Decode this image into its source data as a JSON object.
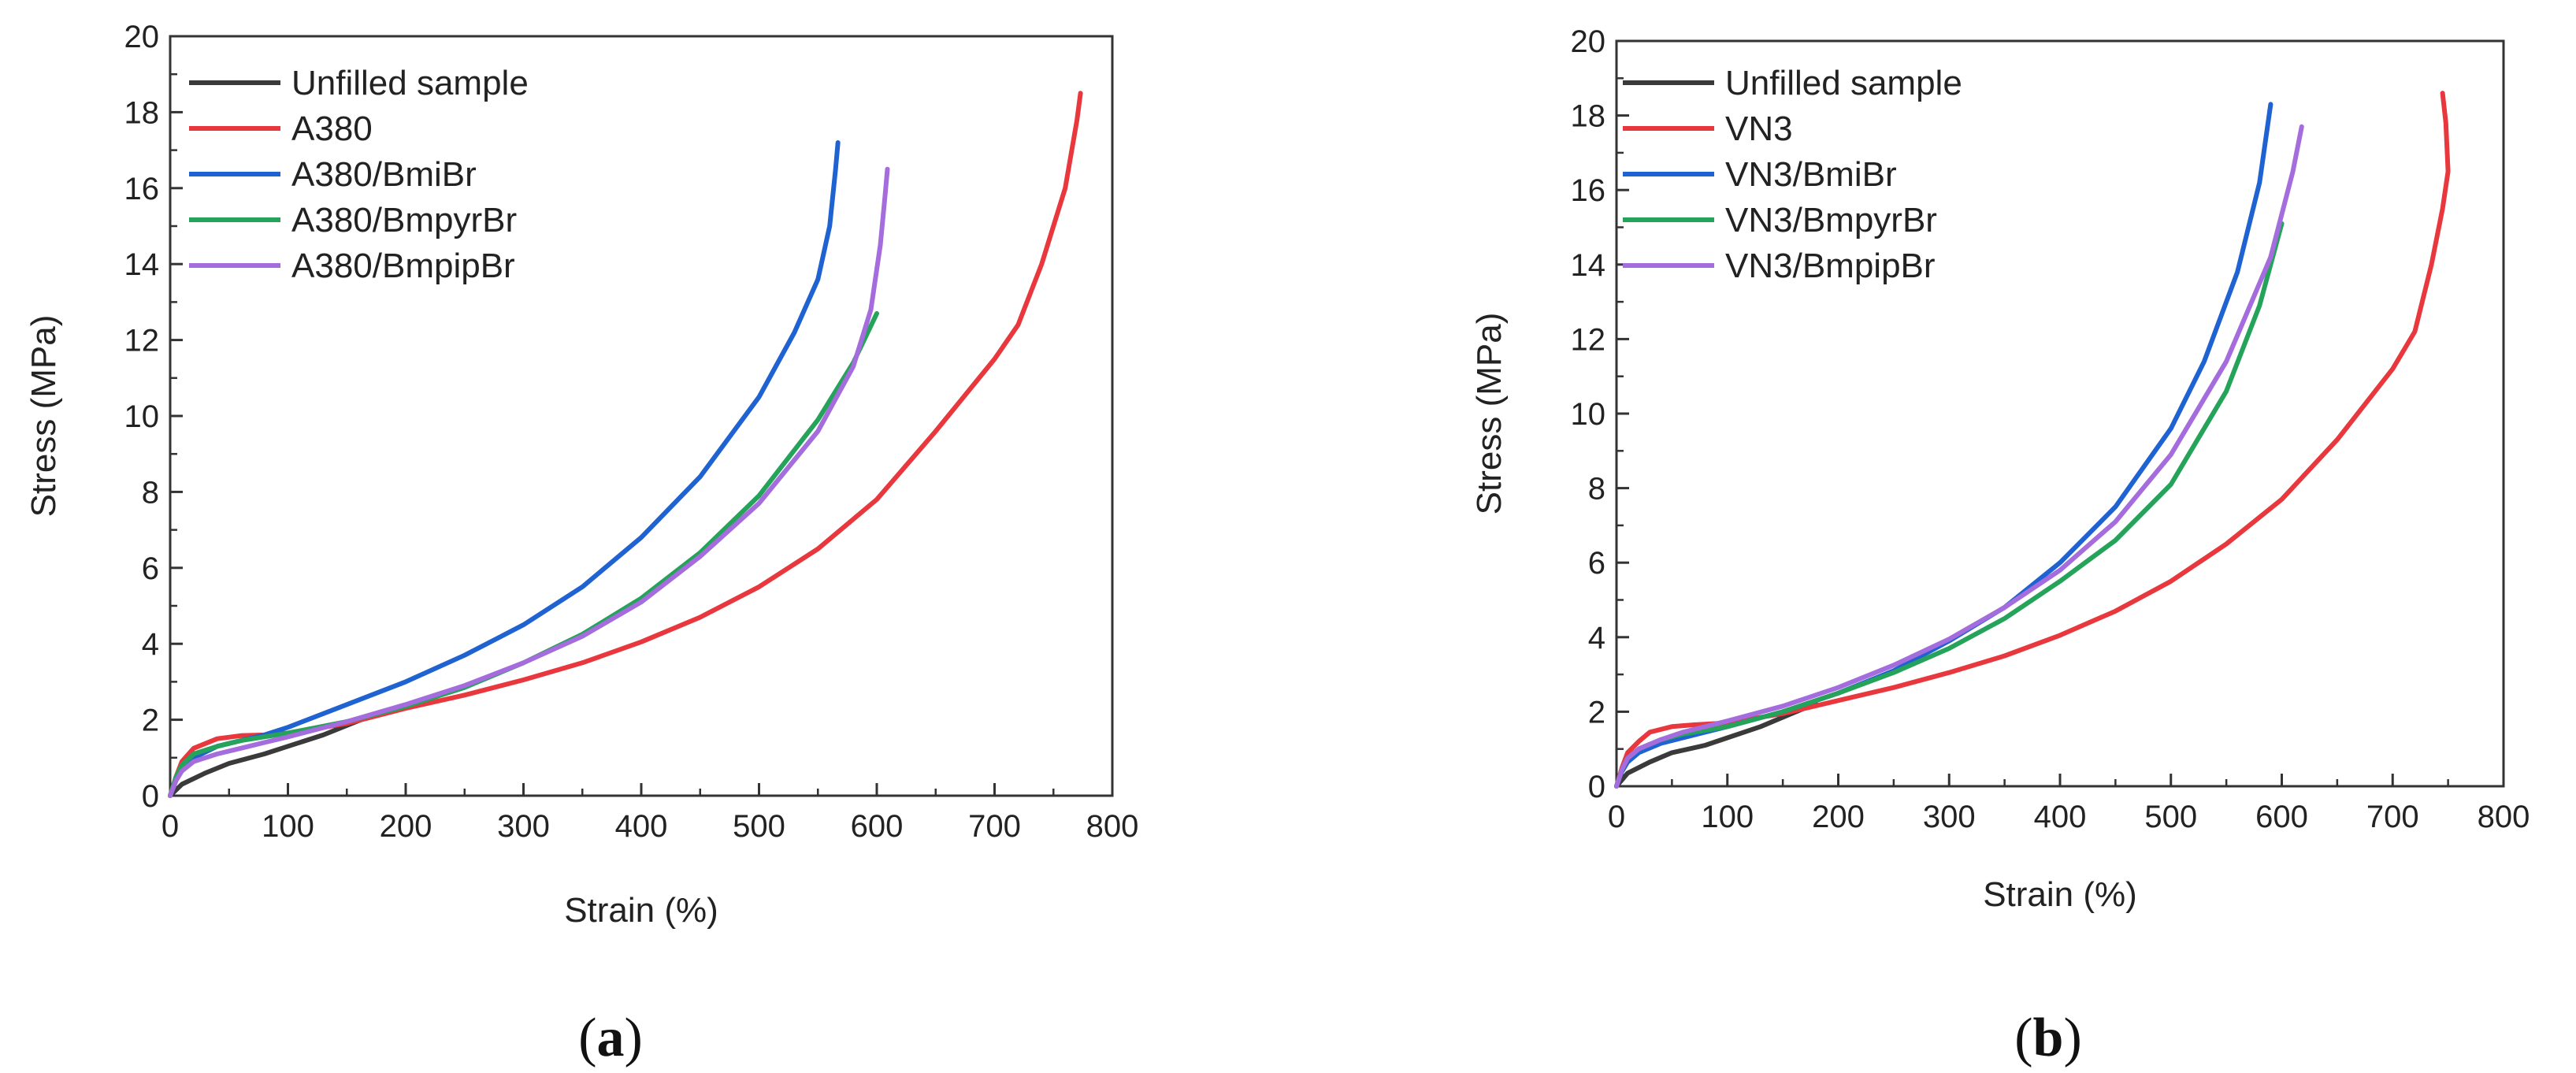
{
  "chart_data": [
    {
      "type": "line",
      "panel_label": "a",
      "xlabel": "Strain (%)",
      "ylabel": "Stress (MPa)",
      "xlim": [
        0,
        800
      ],
      "ylim": [
        0,
        20
      ],
      "xticks": [
        0,
        100,
        200,
        300,
        400,
        500,
        600,
        700,
        800
      ],
      "yticks": [
        0,
        2,
        4,
        6,
        8,
        10,
        12,
        14,
        16,
        18,
        20
      ],
      "legend_position": "top-left",
      "series": [
        {
          "name": "Unfilled sample",
          "color": "#3a3a3a",
          "x": [
            0,
            10,
            30,
            50,
            80,
            100,
            130,
            150,
            170,
            180
          ],
          "y": [
            0,
            0.3,
            0.6,
            0.85,
            1.1,
            1.3,
            1.6,
            1.85,
            2.1,
            2.2
          ]
        },
        {
          "name": "A380",
          "color": "#e8373d",
          "x": [
            0,
            5,
            10,
            20,
            40,
            60,
            80,
            100,
            150,
            200,
            250,
            300,
            350,
            400,
            450,
            500,
            550,
            600,
            650,
            700,
            720,
            740,
            760,
            770,
            773
          ],
          "y": [
            0,
            0.5,
            0.9,
            1.25,
            1.5,
            1.58,
            1.6,
            1.65,
            1.9,
            2.3,
            2.65,
            3.05,
            3.5,
            4.05,
            4.7,
            5.5,
            6.5,
            7.8,
            9.6,
            11.5,
            12.4,
            14.0,
            16.0,
            17.8,
            18.5
          ]
        },
        {
          "name": "A380/BmiBr",
          "color": "#1f62d1",
          "x": [
            0,
            5,
            10,
            20,
            40,
            60,
            80,
            100,
            150,
            200,
            250,
            300,
            350,
            400,
            450,
            500,
            530,
            550,
            560,
            565,
            567
          ],
          "y": [
            0,
            0.4,
            0.7,
            1.0,
            1.3,
            1.45,
            1.6,
            1.8,
            2.4,
            3.0,
            3.7,
            4.5,
            5.5,
            6.8,
            8.4,
            10.5,
            12.2,
            13.6,
            15.0,
            16.5,
            17.2
          ]
        },
        {
          "name": "A380/BmpyrBr",
          "color": "#25a35a",
          "x": [
            0,
            5,
            10,
            20,
            40,
            60,
            80,
            100,
            150,
            200,
            250,
            300,
            350,
            400,
            450,
            500,
            550,
            580,
            600
          ],
          "y": [
            0,
            0.5,
            0.8,
            1.1,
            1.3,
            1.45,
            1.55,
            1.65,
            1.95,
            2.35,
            2.85,
            3.5,
            4.25,
            5.2,
            6.4,
            7.9,
            9.9,
            11.4,
            12.7
          ]
        },
        {
          "name": "A380/BmpipBr",
          "color": "#a46cdc",
          "x": [
            0,
            5,
            10,
            20,
            40,
            60,
            80,
            100,
            150,
            200,
            250,
            300,
            350,
            400,
            450,
            500,
            550,
            580,
            595,
            603,
            607,
            609
          ],
          "y": [
            0,
            0.4,
            0.65,
            0.9,
            1.1,
            1.25,
            1.4,
            1.55,
            1.95,
            2.4,
            2.9,
            3.5,
            4.2,
            5.1,
            6.3,
            7.7,
            9.6,
            11.3,
            12.8,
            14.5,
            15.8,
            16.5
          ]
        }
      ]
    },
    {
      "type": "line",
      "panel_label": "b",
      "xlabel": "Strain (%)",
      "ylabel": "Stress (MPa)",
      "xlim": [
        0,
        800
      ],
      "ylim": [
        0,
        20
      ],
      "xticks": [
        0,
        100,
        200,
        300,
        400,
        500,
        600,
        700,
        800
      ],
      "yticks": [
        0,
        2,
        4,
        6,
        8,
        10,
        12,
        14,
        16,
        18,
        20
      ],
      "legend_position": "top-left",
      "series": [
        {
          "name": "Unfilled sample",
          "color": "#3a3a3a",
          "x": [
            0,
            10,
            30,
            50,
            80,
            100,
            130,
            150,
            170,
            180
          ],
          "y": [
            0,
            0.35,
            0.65,
            0.9,
            1.1,
            1.3,
            1.6,
            1.85,
            2.1,
            2.2
          ]
        },
        {
          "name": "VN3",
          "color": "#e8373d",
          "x": [
            0,
            5,
            10,
            20,
            30,
            50,
            70,
            100,
            150,
            200,
            250,
            300,
            350,
            400,
            450,
            500,
            550,
            600,
            650,
            700,
            720,
            735,
            745,
            750,
            748,
            745
          ],
          "y": [
            0,
            0.5,
            0.9,
            1.2,
            1.45,
            1.6,
            1.65,
            1.7,
            1.95,
            2.3,
            2.65,
            3.05,
            3.5,
            4.05,
            4.7,
            5.5,
            6.5,
            7.7,
            9.3,
            11.2,
            12.2,
            14.0,
            15.5,
            16.5,
            17.8,
            18.6
          ]
        },
        {
          "name": "VN3/BmiBr",
          "color": "#1f62d1",
          "x": [
            0,
            5,
            10,
            20,
            40,
            60,
            80,
            100,
            150,
            200,
            250,
            300,
            350,
            400,
            450,
            500,
            530,
            560,
            580,
            590
          ],
          "y": [
            0,
            0.4,
            0.65,
            0.9,
            1.15,
            1.3,
            1.45,
            1.6,
            2.0,
            2.5,
            3.1,
            3.9,
            4.8,
            6.0,
            7.5,
            9.6,
            11.4,
            13.8,
            16.2,
            18.3
          ]
        },
        {
          "name": "VN3/BmpyrBr",
          "color": "#25a35a",
          "x": [
            0,
            5,
            10,
            20,
            40,
            60,
            80,
            100,
            150,
            200,
            250,
            300,
            350,
            400,
            450,
            500,
            550,
            580,
            600
          ],
          "y": [
            0,
            0.45,
            0.75,
            1.0,
            1.25,
            1.4,
            1.5,
            1.6,
            2.0,
            2.5,
            3.05,
            3.7,
            4.5,
            5.5,
            6.6,
            8.1,
            10.6,
            12.9,
            15.1
          ]
        },
        {
          "name": "VN3/BmpipBr",
          "color": "#a46cdc",
          "x": [
            0,
            5,
            10,
            20,
            40,
            60,
            80,
            100,
            150,
            200,
            250,
            300,
            350,
            400,
            450,
            500,
            550,
            590,
            610,
            618
          ],
          "y": [
            0,
            0.45,
            0.75,
            1.0,
            1.25,
            1.45,
            1.6,
            1.75,
            2.15,
            2.65,
            3.25,
            3.95,
            4.8,
            5.8,
            7.1,
            8.9,
            11.4,
            14.2,
            16.5,
            17.7
          ]
        }
      ]
    }
  ]
}
